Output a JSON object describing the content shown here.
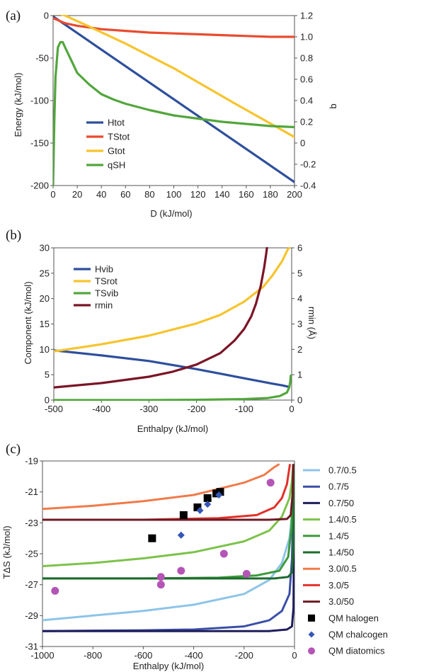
{
  "chart_data": [
    {
      "panel": "(a)",
      "type": "line",
      "xlabel": "D (kJ/mol)",
      "ylabel": "Energy (kJ/mol)",
      "y2label": "q",
      "xlim": [
        0,
        200
      ],
      "ylim": [
        -200,
        0
      ],
      "y2lim": [
        -0.4,
        1.2
      ],
      "xticks": [
        0,
        20,
        40,
        60,
        80,
        100,
        120,
        140,
        160,
        180,
        200
      ],
      "yticks": [
        0,
        -50,
        -100,
        -150,
        -200
      ],
      "y2ticks": [
        1.2,
        1.0,
        0.8,
        0.6,
        0.4,
        0.2,
        0.0,
        -0.2,
        -0.4
      ],
      "y2ticklabels": [
        "1.2",
        "1.0",
        "0.8",
        "0.6",
        "0.4",
        "0.2",
        "0",
        "-0.2",
        "-0.4"
      ],
      "legend_position": "bottom-left",
      "series": [
        {
          "name": "Htot",
          "color": "#2e4f9c",
          "axis": "left",
          "points": [
            [
              0,
              -1
            ],
            [
              200,
              -196
            ]
          ]
        },
        {
          "name": "TStot",
          "color": "#e94b2f",
          "axis": "left",
          "points": [
            [
              0,
              -3
            ],
            [
              5,
              -6
            ],
            [
              10,
              -9
            ],
            [
              20,
              -12
            ],
            [
              40,
              -16
            ],
            [
              60,
              -18
            ],
            [
              80,
              -20
            ],
            [
              100,
              -21
            ],
            [
              120,
              -22
            ],
            [
              140,
              -23
            ],
            [
              160,
              -24
            ],
            [
              180,
              -25
            ],
            [
              200,
              -25
            ]
          ]
        },
        {
          "name": "Gtot",
          "color": "#f6c42d",
          "axis": "left",
          "points": [
            [
              0,
              2
            ],
            [
              5,
              2
            ],
            [
              10,
              0
            ],
            [
              30,
              -13
            ],
            [
              60,
              -33
            ],
            [
              100,
              -62
            ],
            [
              150,
              -103
            ],
            [
              200,
              -143
            ]
          ]
        },
        {
          "name": "qSH",
          "color": "#52a63c",
          "axis": "right",
          "points": [
            [
              0,
              -0.4
            ],
            [
              1,
              0.2
            ],
            [
              2,
              0.62
            ],
            [
              4,
              0.9
            ],
            [
              6,
              0.95
            ],
            [
              8,
              0.95
            ],
            [
              10,
              0.9
            ],
            [
              15,
              0.78
            ],
            [
              20,
              0.66
            ],
            [
              30,
              0.55
            ],
            [
              40,
              0.46
            ],
            [
              50,
              0.41
            ],
            [
              60,
              0.37
            ],
            [
              80,
              0.31
            ],
            [
              100,
              0.26
            ],
            [
              120,
              0.23
            ],
            [
              140,
              0.2
            ],
            [
              160,
              0.18
            ],
            [
              180,
              0.16
            ],
            [
              200,
              0.15
            ]
          ]
        }
      ]
    },
    {
      "panel": "(b)",
      "type": "line",
      "xlabel": "Enthalpy (kJ/mol)",
      "ylabel": "Component (kJ/mol)",
      "y2label": "rmin (Å)",
      "xlim": [
        -500,
        0
      ],
      "ylim": [
        0,
        30
      ],
      "y2lim": [
        0,
        6
      ],
      "xticks": [
        -500,
        -400,
        -300,
        -200,
        -100,
        0
      ],
      "yticks": [
        30,
        25,
        20,
        15,
        10,
        5,
        0
      ],
      "y2ticks": [
        6,
        5,
        4,
        3,
        2,
        1,
        0
      ],
      "legend_position": "top-left",
      "series": [
        {
          "name": "Hvib",
          "color": "#2e4f9c",
          "axis": "left",
          "points": [
            [
              -500,
              9.8
            ],
            [
              -400,
              8.8
            ],
            [
              -300,
              7.7
            ],
            [
              -200,
              6.1
            ],
            [
              -150,
              5.2
            ],
            [
              -100,
              4.3
            ],
            [
              -50,
              3.4
            ],
            [
              -20,
              2.9
            ],
            [
              -5,
              2.6
            ]
          ]
        },
        {
          "name": "TSrot",
          "color": "#f6c42d",
          "axis": "left",
          "points": [
            [
              -500,
              9.6
            ],
            [
              -400,
              11.0
            ],
            [
              -300,
              12.7
            ],
            [
              -200,
              15.1
            ],
            [
              -150,
              16.8
            ],
            [
              -100,
              19.4
            ],
            [
              -60,
              22.3
            ],
            [
              -40,
              24.6
            ],
            [
              -20,
              27.4
            ],
            [
              -8,
              29.7
            ],
            [
              -5,
              30
            ]
          ]
        },
        {
          "name": "TSvib",
          "color": "#52a63c",
          "axis": "left",
          "points": [
            [
              -500,
              0
            ],
            [
              -300,
              0
            ],
            [
              -200,
              0.05
            ],
            [
              -100,
              0.2
            ],
            [
              -50,
              0.4
            ],
            [
              -25,
              0.8
            ],
            [
              -10,
              1.5
            ],
            [
              -5,
              2.5
            ],
            [
              -3,
              3.6
            ],
            [
              -2,
              4.8
            ]
          ]
        },
        {
          "name": "rmin",
          "color": "#7a1526",
          "axis": "right",
          "points": [
            [
              -500,
              0.5
            ],
            [
              -400,
              0.67
            ],
            [
              -300,
              0.92
            ],
            [
              -250,
              1.12
            ],
            [
              -200,
              1.4
            ],
            [
              -150,
              1.85
            ],
            [
              -120,
              2.35
            ],
            [
              -100,
              2.8
            ],
            [
              -85,
              3.3
            ],
            [
              -75,
              3.8
            ],
            [
              -65,
              4.5
            ],
            [
              -58,
              5.2
            ],
            [
              -54,
              5.7
            ],
            [
              -52,
              6.0
            ]
          ]
        }
      ]
    },
    {
      "panel": "(c)",
      "type": "scatter",
      "xlabel": "Enthalpy (kJ/mol)",
      "ylabel": "TΔS (kJ/mol)",
      "xlim": [
        -1000,
        0
      ],
      "ylim": [
        -31,
        -19
      ],
      "xticks": [
        -1000,
        -800,
        -600,
        -400,
        -200,
        0
      ],
      "yticks": [
        -19,
        -21,
        -23,
        -25,
        -27,
        -29,
        -31
      ],
      "legend_position": "right",
      "series": [
        {
          "name": "0.7/0.5",
          "kind": "line",
          "color": "#8dc4e8",
          "points": [
            [
              -1000,
              -29.3
            ],
            [
              -800,
              -29.0
            ],
            [
              -600,
              -28.7
            ],
            [
              -400,
              -28.3
            ],
            [
              -200,
              -27.6
            ],
            [
              -100,
              -26.7
            ],
            [
              -50,
              -25.6
            ],
            [
              -20,
              -24.0
            ],
            [
              -10,
              -22.5
            ],
            [
              -5,
              -19.2
            ]
          ]
        },
        {
          "name": "0.7/5",
          "kind": "line",
          "color": "#3b4fa8",
          "points": [
            [
              -1000,
              -30.0
            ],
            [
              -600,
              -29.95
            ],
            [
              -400,
              -29.9
            ],
            [
              -200,
              -29.7
            ],
            [
              -100,
              -29.3
            ],
            [
              -50,
              -28.7
            ],
            [
              -20,
              -27.6
            ],
            [
              -10,
              -25.4
            ],
            [
              -6,
              -22.5
            ],
            [
              -4,
              -19.2
            ]
          ]
        },
        {
          "name": "0.7/50",
          "kind": "line",
          "color": "#1e1d5c",
          "points": [
            [
              -1000,
              -30.0
            ],
            [
              -400,
              -30.0
            ],
            [
              -100,
              -30.0
            ],
            [
              -30,
              -29.9
            ],
            [
              -10,
              -29.7
            ],
            [
              -4,
              -28.5
            ],
            [
              -2,
              -23.5
            ],
            [
              -1,
              -19.2
            ]
          ]
        },
        {
          "name": "1.4/0.5",
          "kind": "line",
          "color": "#7dc24a",
          "points": [
            [
              -1000,
              -25.8
            ],
            [
              -800,
              -25.6
            ],
            [
              -600,
              -25.3
            ],
            [
              -400,
              -24.9
            ],
            [
              -200,
              -24.2
            ],
            [
              -100,
              -23.5
            ],
            [
              -50,
              -22.6
            ],
            [
              -20,
              -21.4
            ],
            [
              -10,
              -20.3
            ],
            [
              -5,
              -19.2
            ]
          ]
        },
        {
          "name": "1.4/5",
          "kind": "line",
          "color": "#3b9a3b",
          "points": [
            [
              -1000,
              -26.6
            ],
            [
              -600,
              -26.6
            ],
            [
              -300,
              -26.55
            ],
            [
              -150,
              -26.4
            ],
            [
              -60,
              -26.1
            ],
            [
              -25,
              -25.2
            ],
            [
              -12,
              -23.3
            ],
            [
              -6,
              -20.8
            ],
            [
              -4,
              -19.2
            ]
          ]
        },
        {
          "name": "1.4/50",
          "kind": "line",
          "color": "#1d6b2e",
          "points": [
            [
              -1000,
              -26.6
            ],
            [
              -400,
              -26.6
            ],
            [
              -80,
              -26.6
            ],
            [
              -25,
              -26.5
            ],
            [
              -10,
              -26.2
            ],
            [
              -4,
              -24.6
            ],
            [
              -2,
              -19.2
            ]
          ]
        },
        {
          "name": "3.0/0.5",
          "kind": "line",
          "color": "#f07a4a",
          "points": [
            [
              -1000,
              -22.1
            ],
            [
              -800,
              -21.9
            ],
            [
              -600,
              -21.6
            ],
            [
              -400,
              -21.2
            ],
            [
              -300,
              -20.8
            ],
            [
              -200,
              -20.4
            ],
            [
              -120,
              -19.9
            ],
            [
              -80,
              -19.4
            ],
            [
              -60,
              -19.2
            ]
          ]
        },
        {
          "name": "3.0/5",
          "kind": "line",
          "color": "#e2302a",
          "points": [
            [
              -1000,
              -22.8
            ],
            [
              -600,
              -22.8
            ],
            [
              -300,
              -22.7
            ],
            [
              -150,
              -22.5
            ],
            [
              -80,
              -22.0
            ],
            [
              -50,
              -21.4
            ],
            [
              -30,
              -20.5
            ],
            [
              -18,
              -19.2
            ]
          ]
        },
        {
          "name": "3.0/50",
          "kind": "line",
          "color": "#6e1a24",
          "points": [
            [
              -1000,
              -22.8
            ],
            [
              -400,
              -22.8
            ],
            [
              -100,
              -22.8
            ],
            [
              -30,
              -22.75
            ],
            [
              -15,
              -22.5
            ],
            [
              -8,
              -21.2
            ],
            [
              -5,
              -19.2
            ]
          ]
        },
        {
          "name": "QM halogen",
          "kind": "marker",
          "marker": "square",
          "color": "#000000",
          "points": [
            [
              -565,
              -24.0
            ],
            [
              -440,
              -22.5
            ],
            [
              -385,
              -22.0
            ],
            [
              -345,
              -21.4
            ],
            [
              -310,
              -21.1
            ],
            [
              -295,
              -21.0
            ]
          ]
        },
        {
          "name": "QM chalcogen",
          "kind": "marker",
          "marker": "diamond",
          "color": "#3556b5",
          "points": [
            [
              -450,
              -23.8
            ],
            [
              -375,
              -22.2
            ],
            [
              -345,
              -21.8
            ],
            [
              -300,
              -21.2
            ]
          ]
        },
        {
          "name": "QM diatomics",
          "kind": "marker",
          "marker": "circle",
          "color": "#b455b6",
          "points": [
            [
              -950,
              -27.4
            ],
            [
              -530,
              -26.5
            ],
            [
              -530,
              -27.0
            ],
            [
              -450,
              -26.1
            ],
            [
              -280,
              -25.0
            ],
            [
              -190,
              -26.3
            ],
            [
              -95,
              -20.4
            ]
          ]
        }
      ]
    }
  ]
}
